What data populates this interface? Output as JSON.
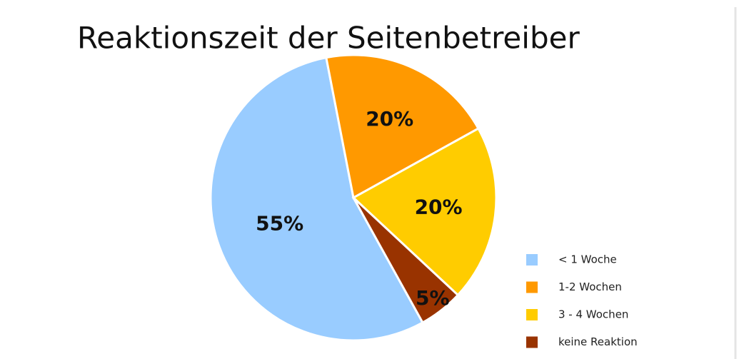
{
  "chart_data": {
    "type": "pie",
    "title": "Reaktionszeit der Seitenbetreiber",
    "categories": [
      "< 1 Woche",
      "1-2 Wochen",
      "3 - 4 Wochen",
      "keine Reaktion"
    ],
    "values": [
      55,
      20,
      20,
      5
    ],
    "value_labels": [
      "55%",
      "20%",
      "20%",
      "5%"
    ],
    "colors": [
      "#99ccff",
      "#ff9900",
      "#ffcc00",
      "#993300"
    ],
    "legend": "bottom-right"
  }
}
